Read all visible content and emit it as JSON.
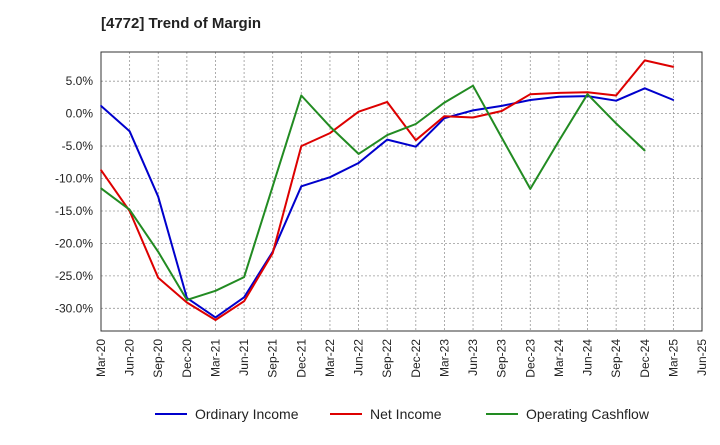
{
  "chart_data": {
    "type": "line",
    "title": "[4772]  Trend of Margin",
    "xlabel": "",
    "ylabel": "",
    "x_tick_labels": [
      "Mar-20",
      "Jun-20",
      "Sep-20",
      "Dec-20",
      "Mar-21",
      "Jun-21",
      "Sep-21",
      "Dec-21",
      "Mar-22",
      "Jun-22",
      "Sep-22",
      "Dec-22",
      "Mar-23",
      "Jun-23",
      "Sep-23",
      "Dec-23",
      "Mar-24",
      "Jun-24",
      "Sep-24",
      "Dec-24",
      "Mar-25",
      "Jun-25"
    ],
    "y_tick_labels": [
      "5.0%",
      "0.0%",
      "-5.0%",
      "-10.0%",
      "-15.0%",
      "-20.0%",
      "-25.0%",
      "-30.0%"
    ],
    "y_ticks": [
      5,
      0,
      -5,
      -10,
      -15,
      -20,
      -25,
      -30
    ],
    "ylim": [
      -33.5,
      9.5
    ],
    "grid": true,
    "legend_position": "bottom",
    "series": [
      {
        "name": "Ordinary Income",
        "color": "#0000cc",
        "points": [
          {
            "x": "Mar-20",
            "y": 1.2
          },
          {
            "x": "Jun-20",
            "y": -2.7
          },
          {
            "x": "Sep-20",
            "y": -12.8
          },
          {
            "x": "Dec-20",
            "y": -28.4
          },
          {
            "x": "Mar-21",
            "y": -31.4
          },
          {
            "x": "Jun-21",
            "y": -28.3
          },
          {
            "x": "Sep-21",
            "y": -21.3
          },
          {
            "x": "Dec-21",
            "y": -11.2
          },
          {
            "x": "Mar-22",
            "y": -9.8
          },
          {
            "x": "Jun-22",
            "y": -7.6
          },
          {
            "x": "Sep-22",
            "y": -4.0
          },
          {
            "x": "Dec-22",
            "y": -5.1
          },
          {
            "x": "Mar-23",
            "y": -0.7
          },
          {
            "x": "Jun-23",
            "y": 0.5
          },
          {
            "x": "Sep-23",
            "y": 1.2
          },
          {
            "x": "Dec-23",
            "y": 2.1
          },
          {
            "x": "Mar-24",
            "y": 2.6
          },
          {
            "x": "Jun-24",
            "y": 2.7
          },
          {
            "x": "Sep-24",
            "y": 2.0
          },
          {
            "x": "Dec-24",
            "y": 3.9
          },
          {
            "x": "Mar-25",
            "y": 2.1
          }
        ]
      },
      {
        "name": "Net Income",
        "color": "#dd0000",
        "points": [
          {
            "x": "Mar-20",
            "y": -8.7
          },
          {
            "x": "Jun-20",
            "y": -15.0
          },
          {
            "x": "Sep-20",
            "y": -25.3
          },
          {
            "x": "Dec-20",
            "y": -29.1
          },
          {
            "x": "Mar-21",
            "y": -31.8
          },
          {
            "x": "Jun-21",
            "y": -28.9
          },
          {
            "x": "Sep-21",
            "y": -21.5
          },
          {
            "x": "Dec-21",
            "y": -5.0
          },
          {
            "x": "Mar-22",
            "y": -3.0
          },
          {
            "x": "Jun-22",
            "y": 0.3
          },
          {
            "x": "Sep-22",
            "y": 1.8
          },
          {
            "x": "Dec-22",
            "y": -4.1
          },
          {
            "x": "Mar-23",
            "y": -0.4
          },
          {
            "x": "Jun-23",
            "y": -0.6
          },
          {
            "x": "Sep-23",
            "y": 0.4
          },
          {
            "x": "Dec-23",
            "y": 3.0
          },
          {
            "x": "Mar-24",
            "y": 3.2
          },
          {
            "x": "Jun-24",
            "y": 3.3
          },
          {
            "x": "Sep-24",
            "y": 2.8
          },
          {
            "x": "Dec-24",
            "y": 8.2
          },
          {
            "x": "Mar-25",
            "y": 7.2
          }
        ]
      },
      {
        "name": "Operating Cashflow",
        "color": "#228b22",
        "points": [
          {
            "x": "Mar-20",
            "y": -11.5
          },
          {
            "x": "Jun-20",
            "y": -14.8
          },
          {
            "x": "Sep-20",
            "y": -21.3
          },
          {
            "x": "Dec-20",
            "y": -28.7
          },
          {
            "x": "Mar-21",
            "y": -27.3
          },
          {
            "x": "Jun-21",
            "y": -25.2
          },
          {
            "x": "Sep-21",
            "y": -11.2
          },
          {
            "x": "Dec-21",
            "y": 2.8
          },
          {
            "x": "Mar-22",
            "y": -2.0
          },
          {
            "x": "Jun-22",
            "y": -6.2
          },
          {
            "x": "Sep-22",
            "y": -3.3
          },
          {
            "x": "Dec-22",
            "y": -1.6
          },
          {
            "x": "Mar-23",
            "y": 1.7
          },
          {
            "x": "Jun-23",
            "y": 4.3
          },
          {
            "x": "Sep-23",
            "y": -3.7
          },
          {
            "x": "Dec-23",
            "y": -11.6
          },
          {
            "x": "Mar-24",
            "y": -4.2
          },
          {
            "x": "Jun-24",
            "y": 3.0
          },
          {
            "x": "Sep-24",
            "y": -1.5
          },
          {
            "x": "Dec-24",
            "y": -5.7
          }
        ]
      }
    ]
  }
}
